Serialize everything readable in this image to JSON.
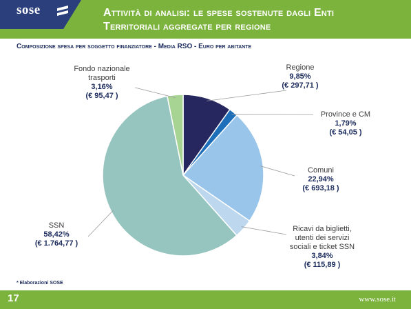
{
  "header": {
    "logo": "sose",
    "title_line1": "Attività di analisi: le spese sostenute dagli Enti",
    "title_line2": "Territoriali aggregate per regione"
  },
  "subtitle": "Composizione spesa per soggetto finanziatore - Media RSO - Euro per abitante",
  "chart_data": {
    "type": "pie",
    "title": "Composizione spesa per soggetto finanziatore - Media RSO - Euro per abitante",
    "start": "12 o'clock",
    "direction": "clockwise",
    "slices": [
      {
        "name": "Regione",
        "label_lines": [
          "Regione"
        ],
        "percent": 9.85,
        "percent_label": "9,85%",
        "amount": 297.71,
        "amount_label": "(€ 297,71 )",
        "color": "#26275f"
      },
      {
        "name": "Province e CM",
        "label_lines": [
          "Province e CM"
        ],
        "percent": 1.79,
        "percent_label": "1,79%",
        "amount": 54.05,
        "amount_label": "(€  54,05 )",
        "color": "#1e6fba"
      },
      {
        "name": "Comuni",
        "label_lines": [
          "Comuni"
        ],
        "percent": 22.94,
        "percent_label": "22,94%",
        "amount": 693.18,
        "amount_label": "(€ 693,18 )",
        "color": "#99c5ea"
      },
      {
        "name": "Ricavi da biglietti, utenti dei servizi sociali e ticket SSN",
        "label_lines": [
          "Ricavi da biglietti,",
          "utenti dei servizi",
          "sociali e ticket SSN"
        ],
        "percent": 3.84,
        "percent_label": "3,84%",
        "amount": 115.89,
        "amount_label": "(€ 115,89 )",
        "color": "#bcd7ee"
      },
      {
        "name": "SSN",
        "label_lines": [
          "SSN"
        ],
        "percent": 58.42,
        "percent_label": "58,42%",
        "amount": 1764.77,
        "amount_label": "(€ 1.764,77 )",
        "color": "#96c5bf"
      },
      {
        "name": "Fondo nazionale trasporti",
        "label_lines": [
          "Fondo nazionale",
          "trasporti"
        ],
        "percent": 3.16,
        "percent_label": "3,16%",
        "amount": 95.47,
        "amount_label": "(€ 95,47 )",
        "color": "#a7d393"
      }
    ]
  },
  "footnote": "* Elaborazioni SOSE",
  "footer": {
    "page_number": "17",
    "site": "www.sose.it"
  },
  "colors": {
    "brand_green": "#7bb33d",
    "brand_navy": "#2a3f7c",
    "label_navy": "#1a2a5c"
  }
}
